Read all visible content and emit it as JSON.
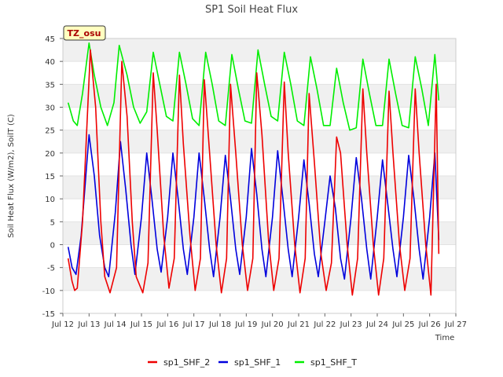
{
  "chart_data": {
    "type": "line",
    "title": "SP1 Soil Heat Flux",
    "xlabel": "Time",
    "ylabel": "Soil Heat Flux (W/m2), SoilT (C)",
    "xlim": [
      12,
      27
    ],
    "ylim": [
      -15,
      45
    ],
    "x_ticks": [
      12,
      13,
      14,
      15,
      16,
      17,
      18,
      19,
      20,
      21,
      22,
      23,
      24,
      25,
      26,
      27
    ],
    "x_tick_labels": [
      "Jul 12",
      "Jul 13",
      "Jul 14",
      "Jul 15",
      "Jul 16",
      "Jul 17",
      "Jul 18",
      "Jul 19",
      "Jul 20",
      "Jul 21",
      "Jul 22",
      "Jul 23",
      "Jul 24",
      "Jul 25",
      "Jul 26",
      "Jul 27"
    ],
    "y_ticks": [
      -15,
      -10,
      -5,
      0,
      5,
      10,
      15,
      20,
      25,
      30,
      35,
      40,
      45
    ],
    "grid": true,
    "legend_position": "bottom",
    "annotation": "TZ_osu",
    "colors": {
      "sp1_SHF_2": "#ee0000",
      "sp1_SHF_1": "#0000dd",
      "sp1_SHF_T": "#00ee00",
      "annotation_bg": "#ffffc0",
      "annotation_text": "#aa0000"
    },
    "series": [
      {
        "name": "sp1_SHF_2",
        "x": [
          12.2,
          12.35,
          12.45,
          12.55,
          12.75,
          13.05,
          13.25,
          13.45,
          13.6,
          13.8,
          14.05,
          14.25,
          14.45,
          14.65,
          14.8,
          15.05,
          15.25,
          15.45,
          15.6,
          15.85,
          16.05,
          16.25,
          16.45,
          16.6,
          16.85,
          17.05,
          17.25,
          17.4,
          17.6,
          17.85,
          18.05,
          18.25,
          18.4,
          18.6,
          18.85,
          19.05,
          19.25,
          19.4,
          19.6,
          19.85,
          20.05,
          20.25,
          20.45,
          20.6,
          20.85,
          21.05,
          21.25,
          21.4,
          21.6,
          21.85,
          22.05,
          22.25,
          22.45,
          22.6,
          22.85,
          23.05,
          23.25,
          23.45,
          23.6,
          23.85,
          24.05,
          24.25,
          24.45,
          24.6,
          24.85,
          25.05,
          25.25,
          25.45,
          25.6,
          25.85,
          26.05,
          26.25,
          26.35
        ],
        "y": [
          -3,
          -8,
          -10,
          -9.5,
          5,
          42.5,
          30,
          5,
          -7,
          -10.5,
          -5,
          40,
          28,
          5,
          -7,
          -10.5,
          -4,
          37.5,
          25,
          2,
          -9.5,
          -3,
          37,
          22,
          2,
          -10,
          -3,
          36,
          20,
          0,
          -10.5,
          -3,
          35,
          20,
          0,
          -10,
          -3,
          37.5,
          24,
          1,
          -10,
          -3,
          35.5,
          20,
          0,
          -10.5,
          -3,
          33,
          18,
          -2,
          -10,
          -4,
          23.5,
          20,
          0,
          -11,
          -3,
          34,
          20,
          0,
          -11,
          -3,
          33.5,
          20,
          0,
          -10,
          -3,
          34,
          20,
          0,
          -11,
          35,
          -2
        ]
      },
      {
        "name": "sp1_SHF_1",
        "x": [
          12.2,
          12.35,
          12.5,
          12.7,
          13.0,
          13.2,
          13.4,
          13.6,
          13.75,
          14.0,
          14.2,
          14.4,
          14.6,
          14.75,
          15.0,
          15.2,
          15.4,
          15.6,
          15.75,
          16.0,
          16.2,
          16.4,
          16.6,
          16.75,
          17.0,
          17.2,
          17.4,
          17.6,
          17.75,
          18.0,
          18.2,
          18.4,
          18.6,
          18.75,
          19.0,
          19.2,
          19.4,
          19.6,
          19.75,
          20.0,
          20.2,
          20.4,
          20.6,
          20.75,
          21.0,
          21.2,
          21.4,
          21.6,
          21.75,
          22.0,
          22.2,
          22.4,
          22.6,
          22.75,
          23.0,
          23.2,
          23.4,
          23.6,
          23.75,
          24.0,
          24.2,
          24.4,
          24.6,
          24.75,
          25.0,
          25.2,
          25.4,
          25.6,
          25.75,
          26.0,
          26.2,
          26.35
        ],
        "y": [
          -0.5,
          -5,
          -6.5,
          2,
          24,
          15,
          2,
          -5,
          -7,
          7,
          22.5,
          12,
          0,
          -6.5,
          6,
          20,
          10,
          -1,
          -6,
          6,
          20,
          10,
          -1,
          -6.5,
          6,
          20,
          10,
          -1,
          -7,
          6,
          19.5,
          10,
          -1,
          -6.5,
          6,
          21,
          11,
          -1,
          -7,
          6,
          20.5,
          10,
          -1,
          -7,
          6,
          18.5,
          9,
          -2,
          -7,
          5,
          15,
          8,
          -3,
          -7.5,
          6,
          19,
          10,
          -1,
          -7.5,
          6,
          18.5,
          9,
          -1,
          -7,
          6,
          19.5,
          10,
          -1,
          -7.5,
          6,
          20,
          1
        ]
      },
      {
        "name": "sp1_SHF_T",
        "x": [
          12.2,
          12.4,
          12.55,
          12.75,
          13.0,
          13.2,
          13.45,
          13.7,
          13.95,
          14.15,
          14.45,
          14.7,
          14.95,
          15.2,
          15.45,
          15.7,
          15.95,
          16.2,
          16.45,
          16.7,
          16.95,
          17.2,
          17.45,
          17.7,
          17.95,
          18.2,
          18.45,
          18.7,
          18.95,
          19.2,
          19.45,
          19.7,
          19.95,
          20.2,
          20.45,
          20.7,
          20.95,
          21.2,
          21.45,
          21.7,
          21.95,
          22.2,
          22.45,
          22.7,
          22.95,
          23.2,
          23.45,
          23.7,
          23.95,
          24.2,
          24.45,
          24.7,
          24.95,
          25.2,
          25.45,
          25.7,
          25.95,
          26.2,
          26.35
        ],
        "y": [
          31,
          27,
          26,
          33,
          44,
          37,
          30,
          26,
          31,
          43.5,
          37,
          30,
          26.5,
          29,
          42,
          35,
          28,
          27,
          42,
          35,
          27.5,
          26,
          42,
          35,
          27,
          26,
          41.5,
          34,
          27,
          26.5,
          42.5,
          35,
          28,
          27,
          42,
          35,
          27,
          26,
          41,
          34,
          26,
          26,
          38.5,
          31,
          25,
          25.5,
          40.5,
          33,
          26,
          26,
          40.5,
          33,
          26,
          25.5,
          41,
          34,
          26,
          41.5,
          31.5
        ]
      }
    ]
  }
}
